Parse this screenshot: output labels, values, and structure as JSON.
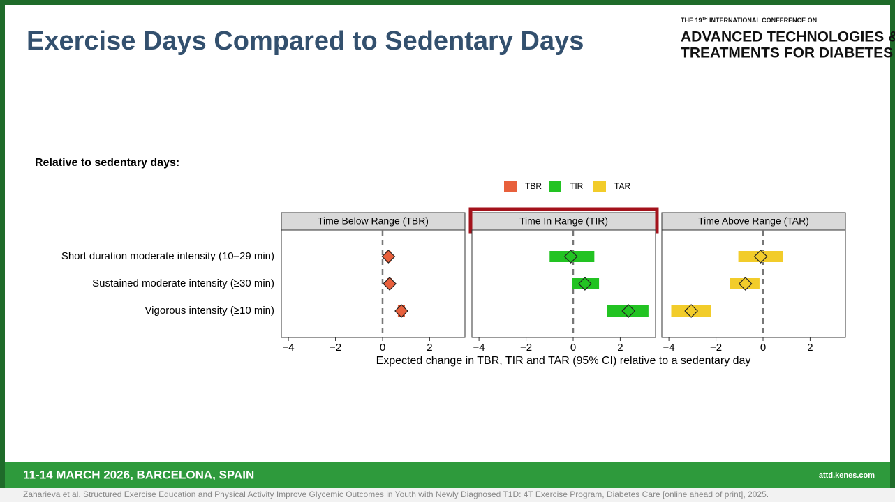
{
  "slide": {
    "title": "Exercise Days Compared to Sedentary Days",
    "conference_pre": "THE 19",
    "conference_sup": "TH",
    "conference_post": " INTERNATIONAL CONFERENCE ON",
    "conference_line1": "ADVANCED TECHNOLOGIES &",
    "conference_line2": "TREATMENTS FOR DIABETES",
    "subtitle": "Relative to sedentary days:",
    "footer_event": "11-14 MARCH 2026, BARCELONA, SPAIN",
    "footer_url": "attd.kenes.com",
    "citation": "Zaharieva et al. Structured Exercise Education and Physical Activity Improve Glycemic Outcomes in Youth with Newly Diagnosed T1D: 4T Exercise Program, Diabetes Care [online ahead of print], 2025."
  },
  "chart_data": {
    "type": "forest",
    "categories": [
      "Short duration moderate intensity (10–29 min)",
      "Sustained moderate intensity (≥30 min)",
      "Vigorous intensity (≥10 min)"
    ],
    "xlabel": "Expected change in TBR, TIR and TAR (95% CI) relative to a sedentary day",
    "xlim": [
      -4.3,
      3.5
    ],
    "xticks": [
      {
        "value": -4,
        "label": "−4"
      },
      {
        "value": -2,
        "label": "−2"
      },
      0,
      2
    ],
    "ref_line": 0,
    "highlight": 1,
    "series": [
      {
        "name": "TBR",
        "title": "Time Below Range (TBR)",
        "color": "#e8603c",
        "values": [
          0.25,
          0.3,
          0.8
        ],
        "low": [
          0.15,
          0.2,
          0.65
        ],
        "high": [
          0.35,
          0.4,
          0.95
        ]
      },
      {
        "name": "TIR",
        "title": "Time In Range (TIR)",
        "color": "#22c322",
        "values": [
          -0.1,
          0.5,
          2.35
        ],
        "low": [
          -1.0,
          -0.05,
          1.45
        ],
        "high": [
          0.9,
          1.1,
          3.2
        ]
      },
      {
        "name": "TAR",
        "title": "Time Above Range (TAR)",
        "color": "#f2cc2a",
        "values": [
          -0.1,
          -0.75,
          -3.05
        ],
        "low": [
          -1.05,
          -1.4,
          -3.9
        ],
        "high": [
          0.85,
          -0.15,
          -2.2
        ]
      }
    ]
  }
}
